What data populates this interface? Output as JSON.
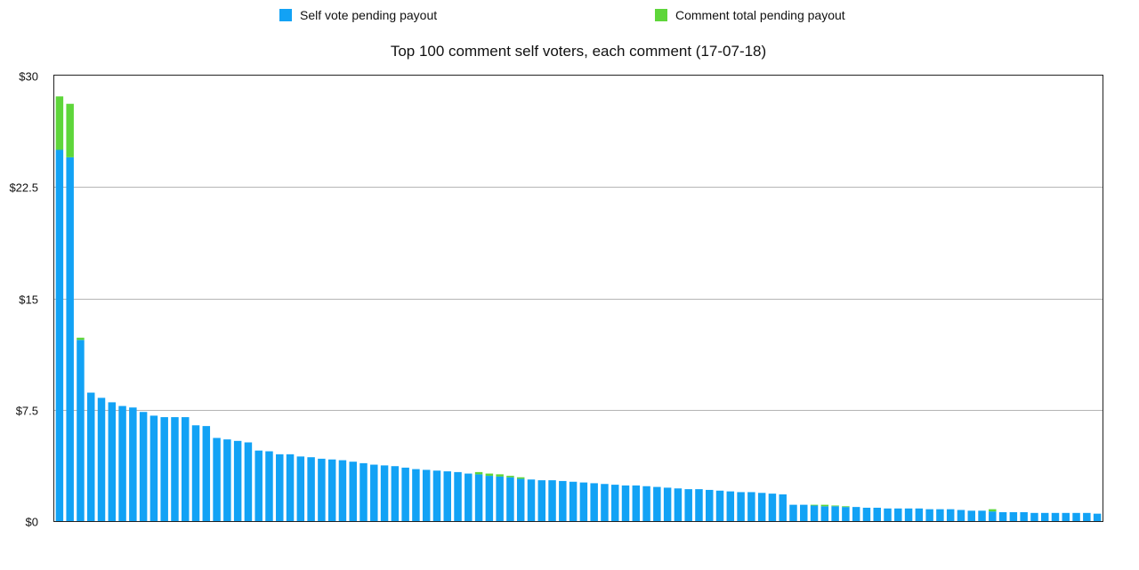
{
  "chart_data": {
    "type": "bar",
    "stacked": true,
    "title": "Top 100 comment self voters, each comment (17-07-18)",
    "legend_position": "top",
    "grid": true,
    "ylim": [
      0,
      30
    ],
    "y_ticks": [
      "$0",
      "$7.5",
      "$15",
      "$22.5",
      "$30"
    ],
    "y_tick_values": [
      0,
      7.5,
      15,
      22.5,
      30
    ],
    "series": [
      {
        "name": "Self vote pending payout",
        "color": "#12a2f5",
        "values": [
          25.0,
          24.5,
          12.2,
          8.65,
          8.3,
          8.0,
          7.75,
          7.65,
          7.35,
          7.1,
          7.0,
          7.0,
          7.0,
          6.45,
          6.4,
          5.6,
          5.5,
          5.4,
          5.3,
          4.75,
          4.7,
          4.5,
          4.5,
          4.35,
          4.3,
          4.2,
          4.15,
          4.1,
          4.0,
          3.9,
          3.8,
          3.75,
          3.7,
          3.6,
          3.5,
          3.45,
          3.4,
          3.35,
          3.3,
          3.2,
          3.15,
          3.05,
          3.0,
          2.95,
          2.85,
          2.8,
          2.75,
          2.75,
          2.7,
          2.65,
          2.6,
          2.55,
          2.5,
          2.45,
          2.4,
          2.4,
          2.35,
          2.3,
          2.25,
          2.2,
          2.15,
          2.15,
          2.1,
          2.05,
          2.0,
          1.95,
          1.95,
          1.9,
          1.85,
          1.8,
          1.1,
          1.1,
          1.05,
          1.0,
          1.0,
          0.95,
          0.95,
          0.9,
          0.9,
          0.85,
          0.85,
          0.85,
          0.85,
          0.8,
          0.8,
          0.8,
          0.75,
          0.7,
          0.7,
          0.65,
          0.6,
          0.6,
          0.6,
          0.55,
          0.55,
          0.55,
          0.55,
          0.55,
          0.55,
          0.5
        ]
      },
      {
        "name": "Comment total pending payout",
        "color": "#5ed63a",
        "values": [
          3.6,
          3.6,
          0.15,
          0,
          0,
          0,
          0,
          0,
          0,
          0,
          0,
          0,
          0,
          0,
          0,
          0,
          0,
          0,
          0,
          0,
          0,
          0,
          0,
          0,
          0,
          0,
          0,
          0,
          0,
          0,
          0,
          0,
          0,
          0,
          0,
          0,
          0,
          0,
          0,
          0,
          0.15,
          0.15,
          0.15,
          0.1,
          0.1,
          0,
          0,
          0,
          0,
          0,
          0,
          0,
          0,
          0,
          0,
          0,
          0,
          0,
          0,
          0,
          0,
          0,
          0,
          0,
          0,
          0,
          0,
          0,
          0,
          0,
          0,
          0,
          0.05,
          0.1,
          0.05,
          0.05,
          0,
          0,
          0,
          0,
          0,
          0,
          0,
          0,
          0,
          0,
          0,
          0,
          0,
          0.15,
          0,
          0,
          0,
          0,
          0,
          0,
          0,
          0,
          0,
          0
        ]
      }
    ]
  }
}
